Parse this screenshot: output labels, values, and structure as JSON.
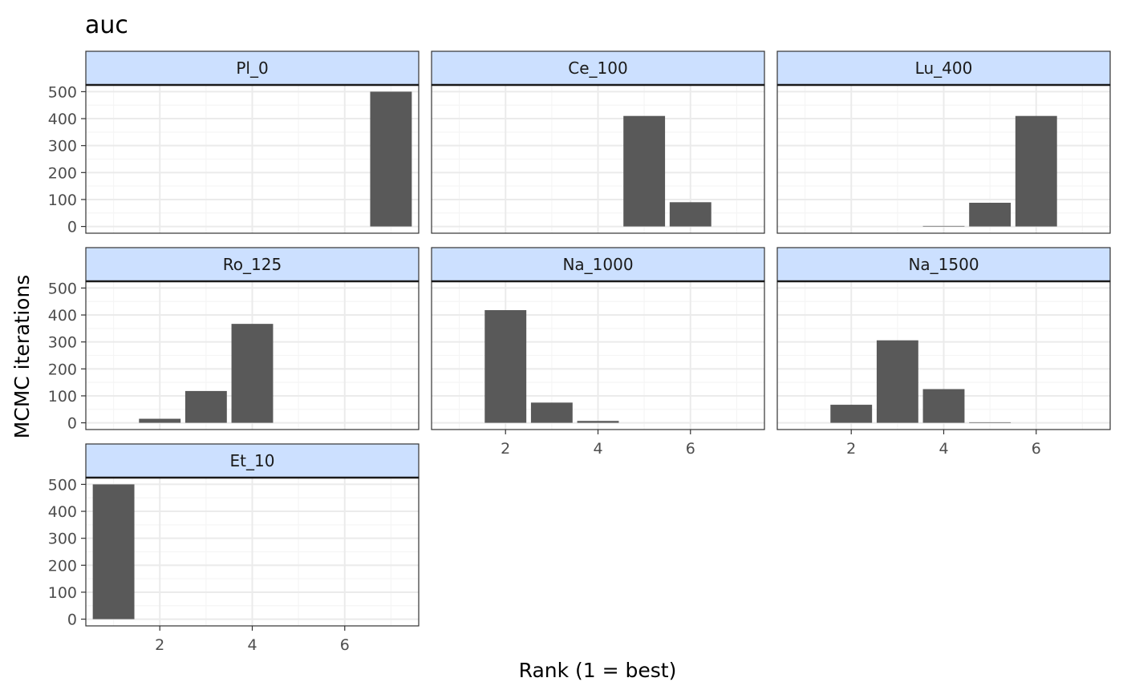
{
  "chart_data": {
    "type": "bar",
    "title": "auc",
    "xlabel": "Rank (1 = best)",
    "ylabel": "MCMC iterations",
    "x_ticks": [
      2,
      4,
      6
    ],
    "y_ticks": [
      0,
      100,
      200,
      300,
      400,
      500
    ],
    "xlim": [
      0.4,
      7.6
    ],
    "ylim": [
      -25,
      525
    ],
    "ranks": [
      1,
      2,
      3,
      4,
      5,
      6,
      7
    ],
    "grid": true,
    "colors": {
      "bar": "#595959",
      "strip_fill": "#cce0ff",
      "panel_border": "#333333",
      "grid_major": "#ebebeb",
      "grid_minor": "#f5f5f5"
    },
    "panels": [
      {
        "name": "Pl_0",
        "values": [
          0,
          0,
          0,
          0,
          0,
          0,
          500
        ]
      },
      {
        "name": "Ce_100",
        "values": [
          0,
          0,
          0,
          0,
          410,
          90,
          0
        ]
      },
      {
        "name": "Lu_400",
        "values": [
          0,
          0,
          0,
          2,
          88,
          410,
          0
        ]
      },
      {
        "name": "Ro_125",
        "values": [
          0,
          15,
          118,
          367,
          0,
          0,
          0
        ]
      },
      {
        "name": "Na_1000",
        "values": [
          0,
          418,
          75,
          7,
          0,
          0,
          0
        ]
      },
      {
        "name": "Na_1500",
        "values": [
          0,
          67,
          306,
          125,
          2,
          0,
          0
        ]
      },
      {
        "name": "Et_10",
        "values": [
          500,
          0,
          0,
          0,
          0,
          0,
          0
        ]
      }
    ]
  }
}
